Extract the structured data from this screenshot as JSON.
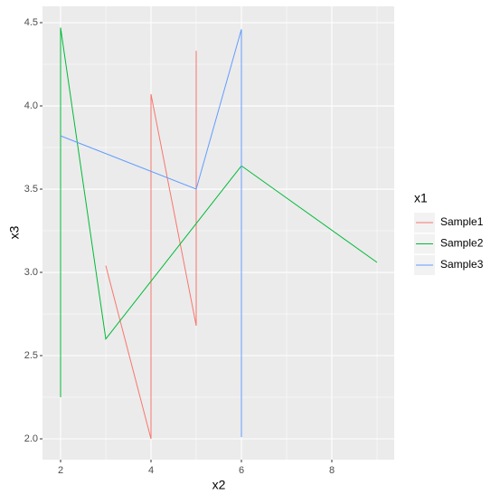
{
  "chart_data": {
    "type": "line",
    "x_label": "x2",
    "y_label": "x3",
    "legend_title": "x1",
    "series": [
      {
        "name": "Sample1",
        "color": "#F8766D",
        "x": [
          3,
          4,
          4,
          5,
          5
        ],
        "values": [
          3.04,
          2.0,
          4.07,
          2.68,
          4.33
        ]
      },
      {
        "name": "Sample2",
        "color": "#00BA38",
        "x": [
          2,
          2,
          3,
          6,
          9
        ],
        "values": [
          2.25,
          4.47,
          2.6,
          3.64,
          3.06
        ]
      },
      {
        "name": "Sample3",
        "color": "#619CFF",
        "x": [
          2,
          5,
          6,
          6
        ],
        "values": [
          3.82,
          3.5,
          4.46,
          2.01
        ]
      }
    ],
    "xlim": [
      1.6,
      9.38
    ],
    "xticks": [
      2,
      4,
      6,
      8
    ],
    "ylim": [
      1.875,
      4.598
    ],
    "yticks": [
      {
        "value": 2,
        "label": "2.0"
      },
      {
        "value": 2.5,
        "label": "2.5"
      },
      {
        "value": 3,
        "label": "3.0"
      },
      {
        "value": 3.5,
        "label": "3.5"
      },
      {
        "value": 4,
        "label": "4.0"
      },
      {
        "value": 4.5,
        "label": "4.5"
      }
    ],
    "grid": true,
    "legend_position": "right"
  }
}
